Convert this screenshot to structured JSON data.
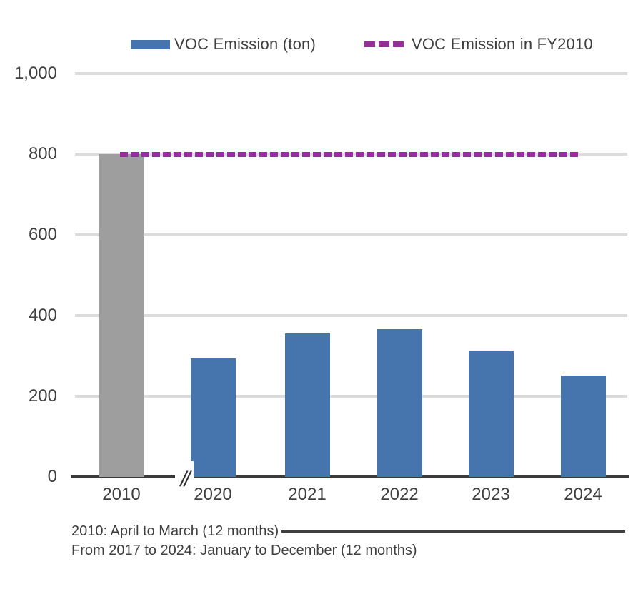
{
  "legend": {
    "items": [
      {
        "label": "VOC Emission (ton)",
        "swatch": "bar",
        "color": "#4674AC"
      },
      {
        "label": "VOC Emission in FY2010",
        "swatch": "dashed-line",
        "color": "#992D9C"
      }
    ],
    "position": "top"
  },
  "chart_data": {
    "type": "bar",
    "title": "",
    "categories": [
      "2010",
      "2020",
      "2021",
      "2022",
      "2023",
      "2024"
    ],
    "values": [
      800,
      294,
      355,
      367,
      312,
      251
    ],
    "bar_colors": [
      "#9E9E9E",
      "#4674AC",
      "#4674AC",
      "#4674AC",
      "#4674AC",
      "#4674AC"
    ],
    "series_name": "VOC Emission (ton)",
    "reference_line": {
      "name": "VOC Emission in FY2010",
      "value": 800,
      "color": "#992D9C",
      "style": "dashed"
    },
    "xlabel": "",
    "ylabel": "",
    "ylim": [
      0,
      1000
    ],
    "yticks_labels": [
      "1,000",
      "800",
      "600",
      "400",
      "200",
      "0"
    ],
    "yticks_values": [
      1000,
      800,
      600,
      400,
      200,
      0
    ],
    "grid": true,
    "gridline_color": "#DCDCDC",
    "axis_color": "#3A3A3A",
    "axis_break_symbol": "//",
    "legend_position": "top"
  },
  "footnotes": {
    "line1": "2010: April to March (12 months)",
    "line2": "From 2017 to 2024: January to December (12 months)"
  },
  "colors": {
    "bar_blue": "#4674AC",
    "bar_gray": "#9E9E9E",
    "reference_purple": "#992D9C",
    "text": "#3F3F3F",
    "gridline": "#DCDCDC",
    "axis": "#3A3A3A"
  }
}
